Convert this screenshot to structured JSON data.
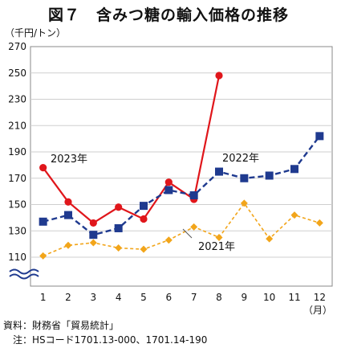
{
  "title": "図７　含みつ糖の輸入価格の推移",
  "y_unit": "（千円/トン）",
  "x_unit": "（月）",
  "source": "資料：財務省「貿易統計」",
  "note": "　注：HSコード1701.13-000、1701.14-190",
  "chart_data": {
    "type": "line",
    "categories": [
      "1",
      "2",
      "3",
      "4",
      "5",
      "6",
      "7",
      "8",
      "9",
      "10",
      "11",
      "12"
    ],
    "y_ticks": [
      "270",
      "250",
      "230",
      "210",
      "190",
      "170",
      "150",
      "130",
      "110"
    ],
    "ylim": [
      110,
      270
    ],
    "axis_break": true,
    "grid": "horizontal",
    "series": [
      {
        "name": "2023年",
        "color": "#e0161b",
        "line": "solid",
        "marker": "circle",
        "values": [
          178,
          152,
          136,
          148,
          139,
          167,
          154,
          248,
          null,
          null,
          null,
          null
        ]
      },
      {
        "name": "2022年",
        "color": "#1f3a8f",
        "line": "dashed",
        "marker": "square",
        "values": [
          137,
          142,
          127,
          132,
          149,
          161,
          157,
          175,
          170,
          172,
          177,
          202
        ]
      },
      {
        "name": "2021年",
        "color": "#f2a51a",
        "line": "dashed",
        "marker": "diamond",
        "values": [
          111,
          119,
          121,
          117,
          116,
          123,
          133,
          125,
          151,
          124,
          142,
          136
        ]
      }
    ]
  }
}
